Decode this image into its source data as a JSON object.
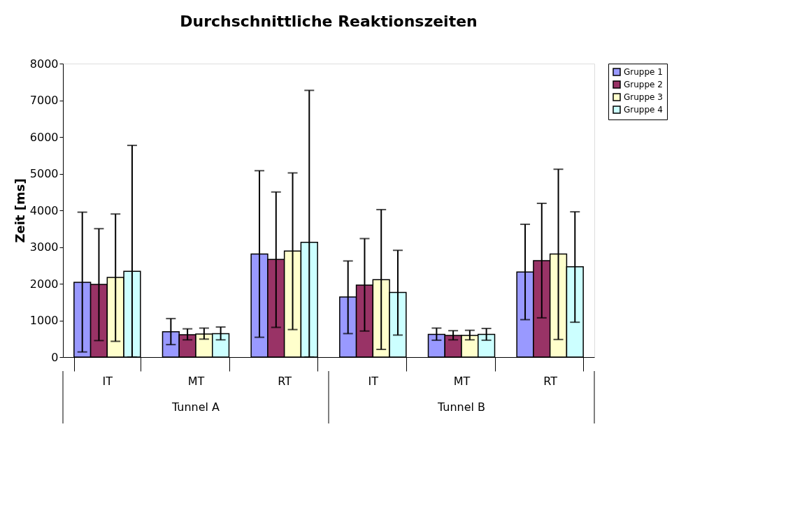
{
  "chart_data": {
    "type": "bar",
    "title": "Durchschnittliche Reaktionszeiten",
    "ylabel": "Zeit [ms]",
    "categories": [
      "IT",
      "MT",
      "RT",
      "IT",
      "MT",
      "RT"
    ],
    "annotations": [
      "Tunnel A",
      "Tunnel B"
    ],
    "series": [
      {
        "name": "Gruppe 1",
        "color": "#9999ff",
        "values": [
          2040,
          690,
          2810,
          1640,
          620,
          2320
        ],
        "errors": [
          [
            140,
            3950
          ],
          [
            340,
            1050
          ],
          [
            540,
            5080
          ],
          [
            640,
            2620
          ],
          [
            460,
            790
          ],
          [
            1020,
            3620
          ]
        ]
      },
      {
        "name": "Gruppe 2",
        "color": "#993366",
        "values": [
          1980,
          610,
          2660,
          1960,
          590,
          2630
        ],
        "errors": [
          [
            450,
            3500
          ],
          [
            470,
            770
          ],
          [
            810,
            4500
          ],
          [
            710,
            3230
          ],
          [
            470,
            720
          ],
          [
            1070,
            4190
          ]
        ]
      },
      {
        "name": "Gruppe 3",
        "color": "#ffffcc",
        "values": [
          2170,
          630,
          2890,
          2110,
          590,
          2810
        ],
        "errors": [
          [
            430,
            3900
          ],
          [
            490,
            790
          ],
          [
            750,
            5020
          ],
          [
            210,
            4020
          ],
          [
            470,
            730
          ],
          [
            480,
            5120
          ]
        ]
      },
      {
        "name": "Gruppe 4",
        "color": "#ccffff",
        "values": [
          2340,
          640,
          3130,
          1760,
          620,
          2460
        ],
        "errors": [
          [
            0,
            5770
          ],
          [
            470,
            820
          ],
          [
            0,
            7270
          ],
          [
            600,
            2910
          ],
          [
            460,
            780
          ],
          [
            950,
            3960
          ]
        ]
      }
    ],
    "ylim": [
      0,
      8000
    ],
    "yticks": [
      0,
      1000,
      2000,
      3000,
      4000,
      5000,
      6000,
      7000,
      8000
    ],
    "grid": false,
    "legend": "right"
  }
}
